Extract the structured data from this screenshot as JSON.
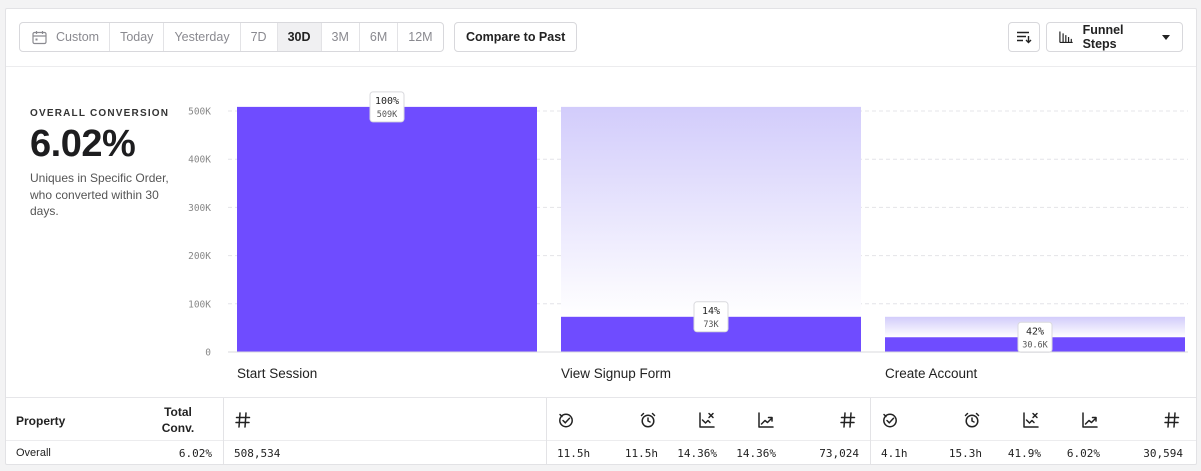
{
  "toolbar": {
    "date_options": [
      "Custom",
      "Today",
      "Yesterday",
      "7D",
      "30D",
      "3M",
      "6M",
      "12M"
    ],
    "active_option": "30D",
    "compare_label": "Compare to Past",
    "funnel_steps_label": "Funnel Steps"
  },
  "summary": {
    "label": "OVERALL CONVERSION",
    "value": "6.02%",
    "description": "Uniques in Specific Order, who converted within 30 days."
  },
  "chart_data": {
    "type": "bar",
    "categories": [
      "Start Session",
      "View Signup Form",
      "Create Account"
    ],
    "values": [
      508534,
      73024,
      30594
    ],
    "previous_step_values": [
      508534,
      508534,
      73024
    ],
    "percent_labels": [
      "100%",
      "14%",
      "42%"
    ],
    "count_labels": [
      "509K",
      "73K",
      "30.6K"
    ],
    "ylim": [
      0,
      500000
    ],
    "yticks": [
      "0",
      "100K",
      "200K",
      "300K",
      "400K",
      "500K"
    ],
    "grid": true,
    "colors": {
      "bar": "#6f4cff",
      "dropoff_top": "#d2ccfb",
      "dropoff_bottom": "#ffffff"
    }
  },
  "table": {
    "headers": {
      "property": "Property",
      "total": "Total Conv.",
      "count_icon": "hash-icon"
    },
    "step_icons": [
      "timer-check-icon",
      "alarm-clock-icon",
      "chart-drop-icon",
      "chart-growth-icon",
      "hash-icon"
    ],
    "row": {
      "property": "Overall",
      "total": "6.02%",
      "step1": [
        "508,534"
      ],
      "step2": [
        "11.5h",
        "11.5h",
        "14.36%",
        "14.36%",
        "73,024"
      ],
      "step3": [
        "4.1h",
        "15.3h",
        "41.9%",
        "6.02%",
        "30,594"
      ]
    }
  }
}
